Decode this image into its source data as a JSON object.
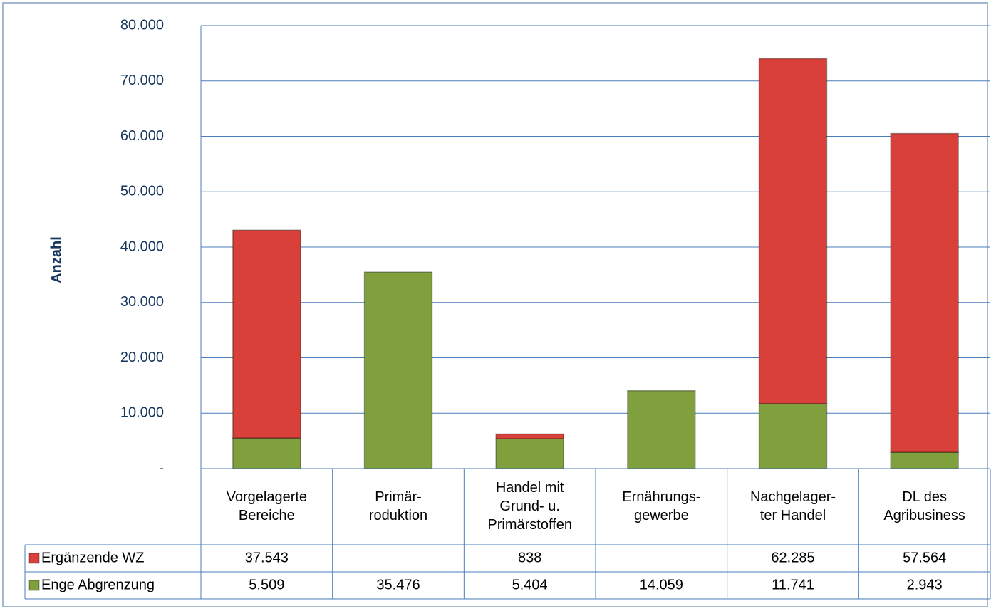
{
  "chart_data": {
    "type": "bar",
    "stacked": true,
    "y_label": "Anzahl",
    "categories": [
      [
        "Vorgelagerte",
        "Bereiche"
      ],
      [
        "Primär-",
        "roduktion"
      ],
      [
        "Handel mit",
        "Grund- u.",
        "Primärstoffen"
      ],
      [
        "Ernährungs-",
        "gewerbe"
      ],
      [
        "Nachgelager-",
        "ter Handel"
      ],
      [
        "DL des",
        "Agribusiness"
      ]
    ],
    "series": [
      {
        "name": "Ergänzende WZ",
        "color": "#d9403a",
        "values": [
          37543,
          null,
          838,
          null,
          62285,
          57564
        ],
        "value_labels": [
          "37.543",
          null,
          "838",
          null,
          "62.285",
          "57.564"
        ]
      },
      {
        "name": "Enge Abgrenzung",
        "color": "#7fa03c",
        "values": [
          5509,
          35476,
          5404,
          14059,
          11741,
          2943
        ],
        "value_labels": [
          "5.509",
          "35.476",
          "5.404",
          "14.059",
          "11.741",
          "2.943"
        ]
      }
    ],
    "ylim": [
      0,
      80000
    ],
    "yticks": [
      {
        "value": 0,
        "label": "-"
      },
      {
        "value": 10000,
        "label": "10.000"
      },
      {
        "value": 20000,
        "label": "20.000"
      },
      {
        "value": 30000,
        "label": "30.000"
      },
      {
        "value": 40000,
        "label": "40.000"
      },
      {
        "value": 50000,
        "label": "50.000"
      },
      {
        "value": 60000,
        "label": "60.000"
      },
      {
        "value": 70000,
        "label": "70.000"
      },
      {
        "value": 80000,
        "label": "80.000"
      }
    ],
    "grid": true
  }
}
